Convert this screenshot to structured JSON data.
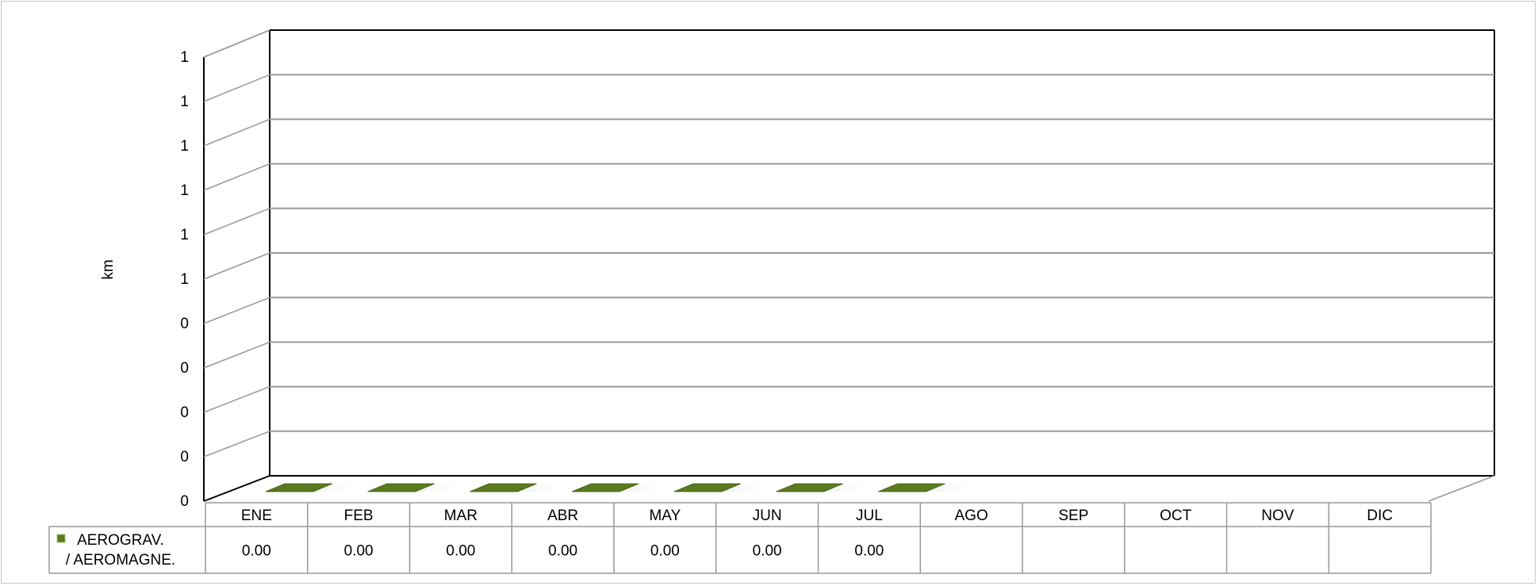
{
  "chart_data": {
    "type": "bar",
    "title": "",
    "xlabel": "",
    "ylabel": "km",
    "y_tick_labels": [
      "0",
      "0",
      "0",
      "0",
      "0",
      "1",
      "1",
      "1",
      "1",
      "1",
      "1"
    ],
    "ylim": [
      0,
      1
    ],
    "categories": [
      "ENE",
      "FEB",
      "MAR",
      "ABR",
      "MAY",
      "JUN",
      "JUL",
      "AGO",
      "SEP",
      "OCT",
      "NOV",
      "DIC"
    ],
    "series": [
      {
        "name": "AEROGRAV. / AEROMAGNE.",
        "name_lines": [
          "AEROGRAV.",
          "/ AEROMAGNE."
        ],
        "values": [
          0,
          0,
          0,
          0,
          0,
          0,
          0,
          null,
          null,
          null,
          null,
          null
        ],
        "labels": [
          "0.00",
          "0.00",
          "0.00",
          "0.00",
          "0.00",
          "0.00",
          "0.00",
          "",
          "",
          "",
          "",
          ""
        ],
        "color": "#5a7a1e"
      }
    ],
    "grid": true,
    "legend": "data-table-left",
    "style": "3d-column"
  }
}
